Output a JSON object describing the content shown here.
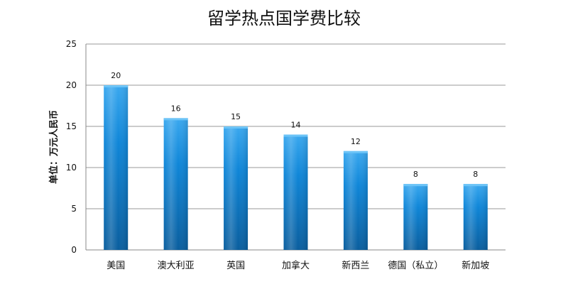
{
  "chart_data": {
    "type": "bar",
    "title": "留学热点国学费比较",
    "xlabel": "",
    "ylabel": "单位：万元人民币",
    "categories": [
      "美国",
      "澳大利亚",
      "英国",
      "加拿大",
      "新西兰",
      "德国（私立）",
      "新加坡"
    ],
    "values": [
      20,
      16,
      15,
      14,
      12,
      8,
      8
    ],
    "ylim": [
      0,
      25
    ],
    "yticks": [
      0,
      5,
      10,
      15,
      20,
      25
    ],
    "grid": true,
    "legend": "none",
    "data_labels": true,
    "colors": {
      "bar_top": "#3aa8ef",
      "bar_mid": "#0f86d8",
      "bar_bottom": "#0a5e9e",
      "grid": "#9a9a9a",
      "axis": "#888888"
    }
  }
}
